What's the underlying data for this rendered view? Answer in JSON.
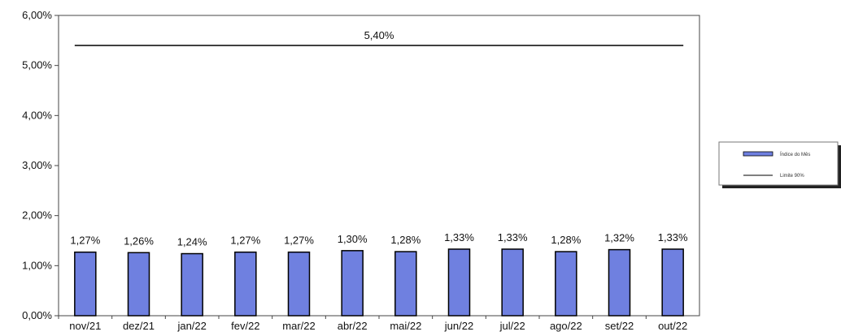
{
  "chart_data": {
    "type": "bar",
    "categories": [
      "nov/21",
      "dez/21",
      "jan/22",
      "fev/22",
      "mar/22",
      "abr/22",
      "mai/22",
      "jun/22",
      "jul/22",
      "ago/22",
      "set/22",
      "out/22"
    ],
    "series": [
      {
        "name": "Índice do Mês",
        "values": [
          1.27,
          1.26,
          1.24,
          1.27,
          1.27,
          1.3,
          1.28,
          1.33,
          1.33,
          1.28,
          1.32,
          1.33
        ],
        "color": "#6f80e0",
        "data_labels": [
          "1,27%",
          "1,26%",
          "1,24%",
          "1,27%",
          "1,27%",
          "1,30%",
          "1,28%",
          "1,33%",
          "1,33%",
          "1,28%",
          "1,32%",
          "1,33%"
        ]
      },
      {
        "name": "Limite 90%",
        "type": "line",
        "value": 5.4,
        "label": "5,40%",
        "color": "#000000"
      }
    ],
    "ylim": [
      0,
      6
    ],
    "yticks": [
      "0,00%",
      "1,00%",
      "2,00%",
      "3,00%",
      "4,00%",
      "5,00%",
      "6,00%"
    ],
    "ytick_values": [
      0,
      1,
      2,
      3,
      4,
      5,
      6
    ],
    "grid": false,
    "legend_position": "right"
  }
}
